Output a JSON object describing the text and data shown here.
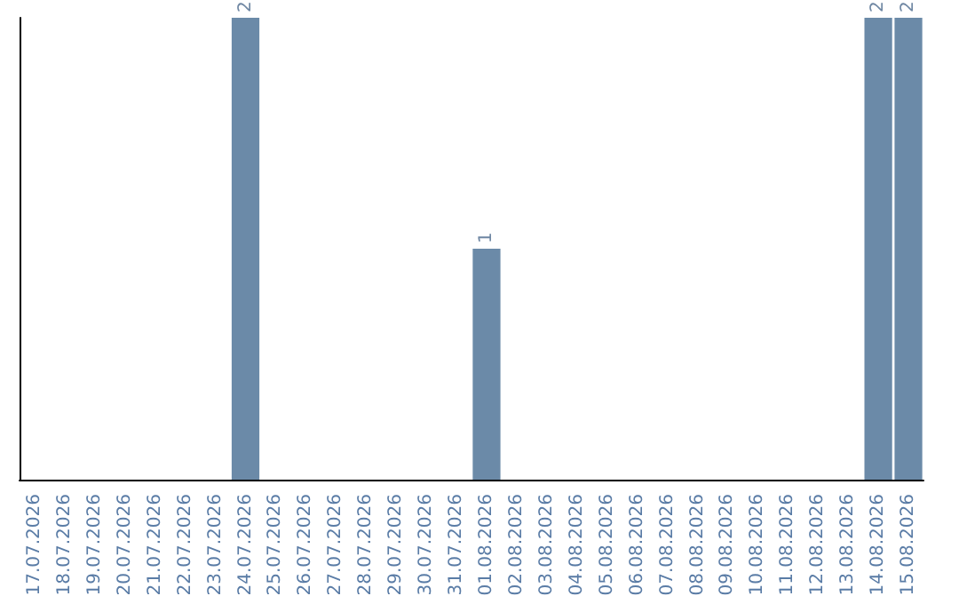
{
  "chart_data": {
    "type": "bar",
    "categories": [
      "17.07.2026",
      "18.07.2026",
      "19.07.2026",
      "20.07.2026",
      "21.07.2026",
      "22.07.2026",
      "23.07.2026",
      "24.07.2026",
      "25.07.2026",
      "26.07.2026",
      "27.07.2026",
      "28.07.2026",
      "29.07.2026",
      "30.07.2026",
      "31.07.2026",
      "01.08.2026",
      "02.08.2026",
      "03.08.2026",
      "04.08.2026",
      "05.08.2026",
      "06.08.2026",
      "07.08.2026",
      "08.08.2026",
      "09.08.2026",
      "10.08.2026",
      "11.08.2026",
      "12.08.2026",
      "13.08.2026",
      "14.08.2026",
      "15.08.2026"
    ],
    "values": [
      0,
      0,
      0,
      0,
      0,
      0,
      0,
      2,
      0,
      0,
      0,
      0,
      0,
      0,
      0,
      1,
      0,
      0,
      0,
      0,
      0,
      0,
      0,
      0,
      0,
      0,
      0,
      0,
      2,
      2
    ],
    "value_labels": [
      null,
      null,
      null,
      null,
      null,
      null,
      null,
      "2",
      null,
      null,
      null,
      null,
      null,
      null,
      null,
      "1",
      null,
      null,
      null,
      null,
      null,
      null,
      null,
      null,
      null,
      null,
      null,
      null,
      "2",
      "2"
    ],
    "color": "#6b8aa8",
    "tick_labels": "x",
    "grid": false
  }
}
